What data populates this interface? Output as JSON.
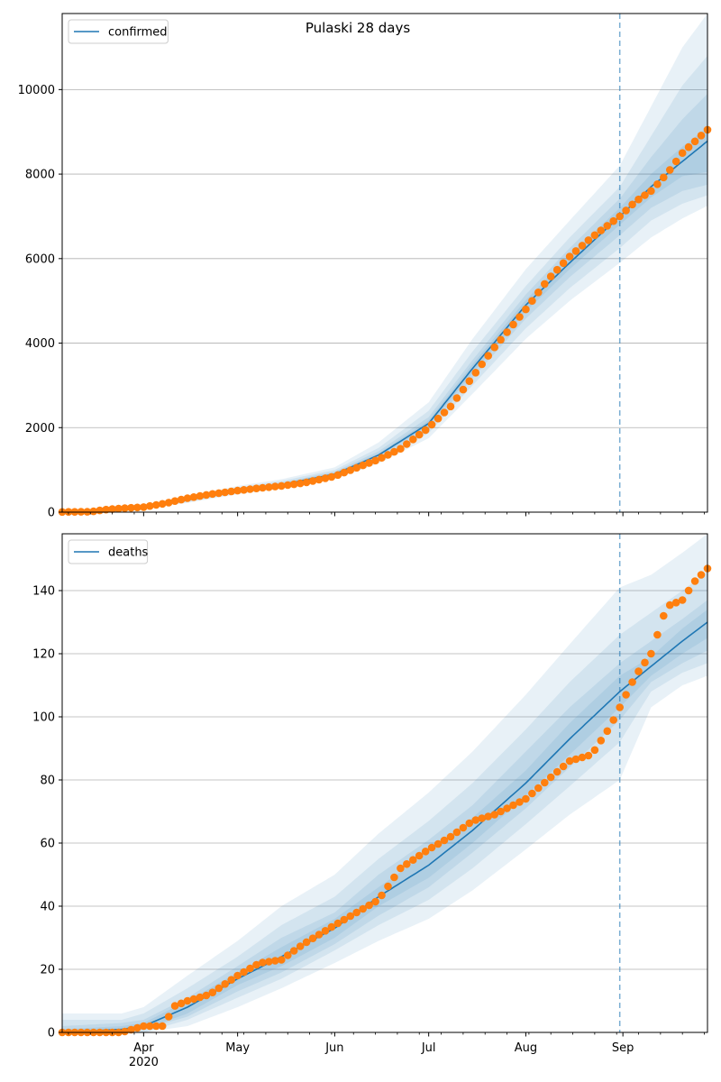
{
  "figure_title": "Pulaski 28 days",
  "colors": {
    "model_line": "#1f77b4",
    "band": "#1f77b4",
    "observed_points": "#ff7f0e",
    "vline": "#1f77b4"
  },
  "chart_data": [
    {
      "type": "line",
      "title": "Pulaski 28 days",
      "legend": [
        "confirmed"
      ],
      "legend_position": "top-left",
      "grid": "y",
      "xlim": [
        "2020-03-06",
        "2020-09-28"
      ],
      "ylim": [
        0,
        11800
      ],
      "yticks": [
        0,
        2000,
        4000,
        6000,
        8000,
        10000
      ],
      "x_tick_labels": [
        "Apr\n2020",
        "May",
        "Jun",
        "Jul",
        "Aug",
        "Sep"
      ],
      "forecast_start": "2020-08-31",
      "model": {
        "name": "confirmed",
        "x": [
          "2020-03-06",
          "2020-03-20",
          "2020-04-01",
          "2020-04-15",
          "2020-05-01",
          "2020-05-15",
          "2020-06-01",
          "2020-06-15",
          "2020-07-01",
          "2020-07-15",
          "2020-08-01",
          "2020-08-15",
          "2020-08-31",
          "2020-09-10",
          "2020-09-20",
          "2020-09-28"
        ],
        "y": [
          0,
          5,
          110,
          290,
          500,
          650,
          900,
          1350,
          2100,
          3400,
          4900,
          5900,
          7000,
          7700,
          8300,
          8780
        ],
        "bands": [
          {
            "lower": [
              0,
              0,
              80,
              220,
              420,
              560,
              780,
              1150,
              1750,
              2800,
              4100,
              5000,
              5900,
              6500,
              6950,
              7250
            ],
            "upper": [
              5,
              20,
              160,
              380,
              620,
              780,
              1060,
              1650,
              2600,
              4100,
              5750,
              6900,
              8200,
              9600,
              11000,
              11800
            ]
          },
          {
            "lower": [
              0,
              0,
              90,
              240,
              450,
              590,
              820,
              1220,
              1870,
              3000,
              4350,
              5300,
              6250,
              6900,
              7300,
              7500
            ],
            "upper": [
              3,
              14,
              140,
              350,
              580,
              740,
              1000,
              1520,
              2400,
              3800,
              5350,
              6500,
              7700,
              8900,
              10100,
              10800
            ]
          },
          {
            "lower": [
              0,
              0,
              95,
              255,
              470,
              615,
              855,
              1280,
              1970,
              3170,
              4580,
              5560,
              6550,
              7200,
              7600,
              7750
            ],
            "upper": [
              2,
              10,
              128,
              325,
              545,
              700,
              960,
              1440,
              2250,
              3600,
              5150,
              6250,
              7420,
              8400,
              9300,
              9900
            ]
          },
          {
            "lower": [
              0,
              0,
              100,
              270,
              485,
              635,
              880,
              1320,
              2040,
              3290,
              4750,
              5750,
              6800,
              7450,
              7950,
              8050
            ],
            "upper": [
              1,
              7,
              120,
              310,
              520,
              675,
              930,
              1390,
              2170,
              3500,
              5020,
              6080,
              7200,
              8000,
              8650,
              9100
            ]
          }
        ]
      },
      "observed": {
        "x": [
          "2020-03-06",
          "2020-03-15",
          "2020-03-20",
          "2020-03-25",
          "2020-04-01",
          "2020-04-08",
          "2020-04-15",
          "2020-04-22",
          "2020-05-01",
          "2020-05-08",
          "2020-05-15",
          "2020-05-22",
          "2020-06-01",
          "2020-06-08",
          "2020-06-15",
          "2020-06-22",
          "2020-07-01",
          "2020-07-08",
          "2020-07-15",
          "2020-07-22",
          "2020-08-01",
          "2020-08-08",
          "2020-08-15",
          "2020-08-22",
          "2020-08-31",
          "2020-09-05",
          "2020-09-10",
          "2020-09-15",
          "2020-09-20",
          "2020-09-28"
        ],
        "y": [
          5,
          10,
          60,
          90,
          120,
          210,
          330,
          420,
          510,
          570,
          620,
          690,
          850,
          1050,
          1250,
          1500,
          2000,
          2500,
          3200,
          3900,
          4800,
          5500,
          6050,
          6500,
          7000,
          7350,
          7600,
          8000,
          8500,
          9050
        ]
      }
    },
    {
      "type": "line",
      "title": "",
      "legend": [
        "deaths"
      ],
      "legend_position": "top-left",
      "grid": "y",
      "xlim": [
        "2020-03-06",
        "2020-09-28"
      ],
      "ylim": [
        0,
        158
      ],
      "yticks": [
        0,
        20,
        40,
        60,
        80,
        100,
        120,
        140
      ],
      "x_tick_labels": [
        "Apr\n2020",
        "May",
        "Jun",
        "Jul",
        "Aug",
        "Sep"
      ],
      "forecast_start": "2020-08-31",
      "model": {
        "name": "deaths",
        "x": [
          "2020-03-06",
          "2020-03-25",
          "2020-04-01",
          "2020-04-15",
          "2020-05-01",
          "2020-05-15",
          "2020-06-01",
          "2020-06-15",
          "2020-07-01",
          "2020-07-15",
          "2020-08-01",
          "2020-08-15",
          "2020-08-31",
          "2020-09-10",
          "2020-09-20",
          "2020-09-28"
        ],
        "y": [
          0,
          1,
          2,
          8,
          17,
          24,
          33,
          43,
          53,
          64,
          79,
          93,
          108,
          116,
          124,
          130
        ],
        "bands": [
          {
            "lower": [
              0,
              0,
              0,
              2,
              8,
              14,
              22,
              29,
              36,
              45,
              58,
              69,
              80,
              103,
              110,
              113
            ],
            "upper": [
              6,
              6,
              8,
              18,
              29,
              40,
              50,
              63,
              76,
              89,
              107,
              123,
              141,
              145,
              152,
              158
            ]
          },
          {
            "lower": [
              0,
              0,
              0,
              4,
              11,
              17,
              26,
              34,
              42,
              52,
              66,
              78,
              92,
              108,
              114,
              117
            ],
            "upper": [
              4,
              4,
              6,
              14,
              24,
              34,
              43,
              55,
              67,
              79,
              96,
              111,
              126,
              133,
              140,
              146
            ]
          },
          {
            "lower": [
              0,
              0,
              1,
              5,
              13,
              19,
              28,
              37,
              46,
              57,
              71,
              84,
              99,
              111,
              117,
              121
            ],
            "upper": [
              2,
              3,
              4,
              11,
              21,
              30,
              38,
              50,
              61,
              72,
              89,
              103,
              117,
              124,
              131,
              137
            ]
          },
          {
            "lower": [
              0,
              0,
              1,
              6,
              15,
              21,
              30,
              40,
              49,
              60,
              75,
              88,
              103,
              113,
              120,
              125
            ],
            "upper": [
              1,
              2,
              3,
              10,
              19,
              27,
              36,
              46,
              57,
              68,
              83,
              98,
              113,
              119,
              128,
              134
            ]
          }
        ]
      },
      "observed": {
        "x": [
          "2020-03-06",
          "2020-03-15",
          "2020-03-25",
          "2020-04-01",
          "2020-04-08",
          "2020-04-10",
          "2020-04-15",
          "2020-04-22",
          "2020-05-01",
          "2020-05-08",
          "2020-05-15",
          "2020-05-22",
          "2020-06-01",
          "2020-06-08",
          "2020-06-15",
          "2020-06-22",
          "2020-07-01",
          "2020-07-08",
          "2020-07-15",
          "2020-07-22",
          "2020-08-01",
          "2020-08-08",
          "2020-08-15",
          "2020-08-22",
          "2020-08-28",
          "2020-08-31",
          "2020-09-05",
          "2020-09-10",
          "2020-09-15",
          "2020-09-20",
          "2020-09-24",
          "2020-09-28"
        ],
        "y": [
          0,
          0,
          0,
          2,
          2,
          8,
          10,
          12,
          18,
          22,
          23,
          28,
          34,
          38,
          42,
          52,
          58,
          62,
          67,
          69,
          74,
          80,
          86,
          88,
          97,
          103,
          113,
          120,
          135,
          137,
          143,
          147
        ]
      }
    }
  ]
}
